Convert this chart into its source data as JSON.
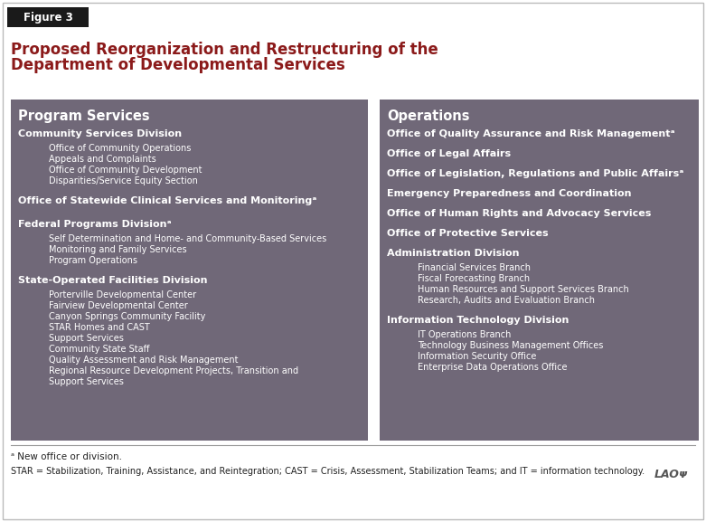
{
  "figure_label": "Figure 3",
  "title_line1": "Proposed Reorganization and Restructuring of the",
  "title_line2": "Department of Developmental Services",
  "title_color": "#8B1A1A",
  "figure_label_bg": "#1a1a1a",
  "box_bg": "#706878",
  "left_panel_header": "Program Services",
  "left_panel_sections": [
    {
      "header": "Community Services Division",
      "header_superscript": false,
      "sub_items": [
        "Office of Community Operations",
        "Appeals and Complaints",
        "Office of Community Development",
        "Disparities/Service Equity Section"
      ]
    },
    {
      "header": "Office of Statewide Clinical Services and Monitoring",
      "header_superscript": true,
      "sub_items": []
    },
    {
      "header": "Federal Programs Division",
      "header_superscript": true,
      "sub_items": [
        "Self Determination and Home- and Community-Based Services",
        "Monitoring and Family Services",
        "Program Operations"
      ]
    },
    {
      "header": "State-Operated Facilities Division",
      "header_superscript": false,
      "sub_items": [
        "Porterville Developmental Center",
        "Fairview Developmental Center",
        "Canyon Springs Community Facility",
        "STAR Homes and CAST",
        "Support Services",
        "Community State Staff",
        "Quality Assessment and Risk Management",
        "Regional Resource Development Projects, Transition and",
        "Support Services"
      ]
    }
  ],
  "right_panel_header": "Operations",
  "right_panel_sections": [
    {
      "header": "Office of Quality Assurance and Risk Management",
      "header_superscript": true,
      "sub_items": []
    },
    {
      "header": "Office of Legal Affairs",
      "header_superscript": false,
      "sub_items": []
    },
    {
      "header": "Office of Legislation, Regulations and Public Affairs",
      "header_superscript": true,
      "sub_items": []
    },
    {
      "header": "Emergency Preparedness and Coordination",
      "header_superscript": false,
      "sub_items": []
    },
    {
      "header": "Office of Human Rights and Advocacy Services",
      "header_superscript": false,
      "sub_items": []
    },
    {
      "header": "Office of Protective Services",
      "header_superscript": false,
      "sub_items": []
    },
    {
      "header": "Administration Division",
      "header_superscript": false,
      "sub_items": [
        "Financial Services Branch",
        "Fiscal Forecasting Branch",
        "Human Resources and Support Services Branch",
        "Research, Audits and Evaluation Branch"
      ]
    },
    {
      "header": "Information Technology Division",
      "header_superscript": false,
      "sub_items": [
        "IT Operations Branch",
        "Technology Business Management Offices",
        "Information Security Office",
        "Enterprise Data Operations Office"
      ]
    }
  ],
  "footnote1": "ᵃ New office or division.",
  "footnote2": "STAR = Stabilization, Training, Assistance, and Reintegration; CAST = Crisis, Assessment, Stabilization Teams; and IT = information technology.",
  "lao_text": "LAOᴪ"
}
